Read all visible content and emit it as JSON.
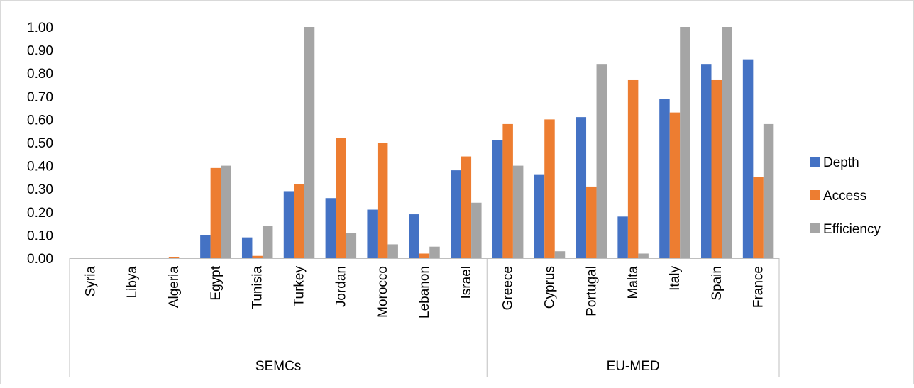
{
  "chart_data": {
    "type": "bar",
    "title": "",
    "xlabel": "",
    "ylabel": "",
    "ylim": [
      0,
      1
    ],
    "yticks": [
      "0.00",
      "0.10",
      "0.20",
      "0.30",
      "0.40",
      "0.50",
      "0.60",
      "0.70",
      "0.80",
      "0.90",
      "1.00"
    ],
    "grid": false,
    "legend_position": "right",
    "groups": [
      {
        "label": "SEMCs",
        "categories": [
          "Syria",
          "Libya",
          "Algeria",
          "Egypt",
          "Tunisia",
          "Turkey",
          "Jordan",
          "Morocco",
          "Lebanon",
          "Israel"
        ]
      },
      {
        "label": "EU-MED",
        "categories": [
          "Greece",
          "Cyprus",
          "Portugal",
          "Malta",
          "Italy",
          "Spain",
          "France"
        ]
      }
    ],
    "categories": [
      "Syria",
      "Libya",
      "Algeria",
      "Egypt",
      "Tunisia",
      "Turkey",
      "Jordan",
      "Morocco",
      "Lebanon",
      "Israel",
      "Greece",
      "Cyprus",
      "Portugal",
      "Malta",
      "Italy",
      "Spain",
      "France"
    ],
    "series": [
      {
        "name": "Depth",
        "color": "#4472C4",
        "values": [
          0.0,
          0.0,
          0.0,
          0.1,
          0.09,
          0.29,
          0.26,
          0.21,
          0.19,
          0.38,
          0.51,
          0.36,
          0.61,
          0.18,
          0.69,
          0.84,
          0.86
        ]
      },
      {
        "name": "Access",
        "color": "#ED7D31",
        "values": [
          0.0,
          0.0,
          0.005,
          0.39,
          0.01,
          0.32,
          0.52,
          0.5,
          0.02,
          0.44,
          0.58,
          0.6,
          0.31,
          0.77,
          0.63,
          0.77,
          0.35
        ]
      },
      {
        "name": "Efficiency",
        "color": "#A5A5A5",
        "values": [
          0.0,
          0.0,
          0.0,
          0.4,
          0.14,
          1.0,
          0.11,
          0.06,
          0.05,
          0.24,
          0.4,
          0.03,
          0.84,
          0.02,
          1.0,
          1.0,
          0.58
        ]
      }
    ]
  }
}
